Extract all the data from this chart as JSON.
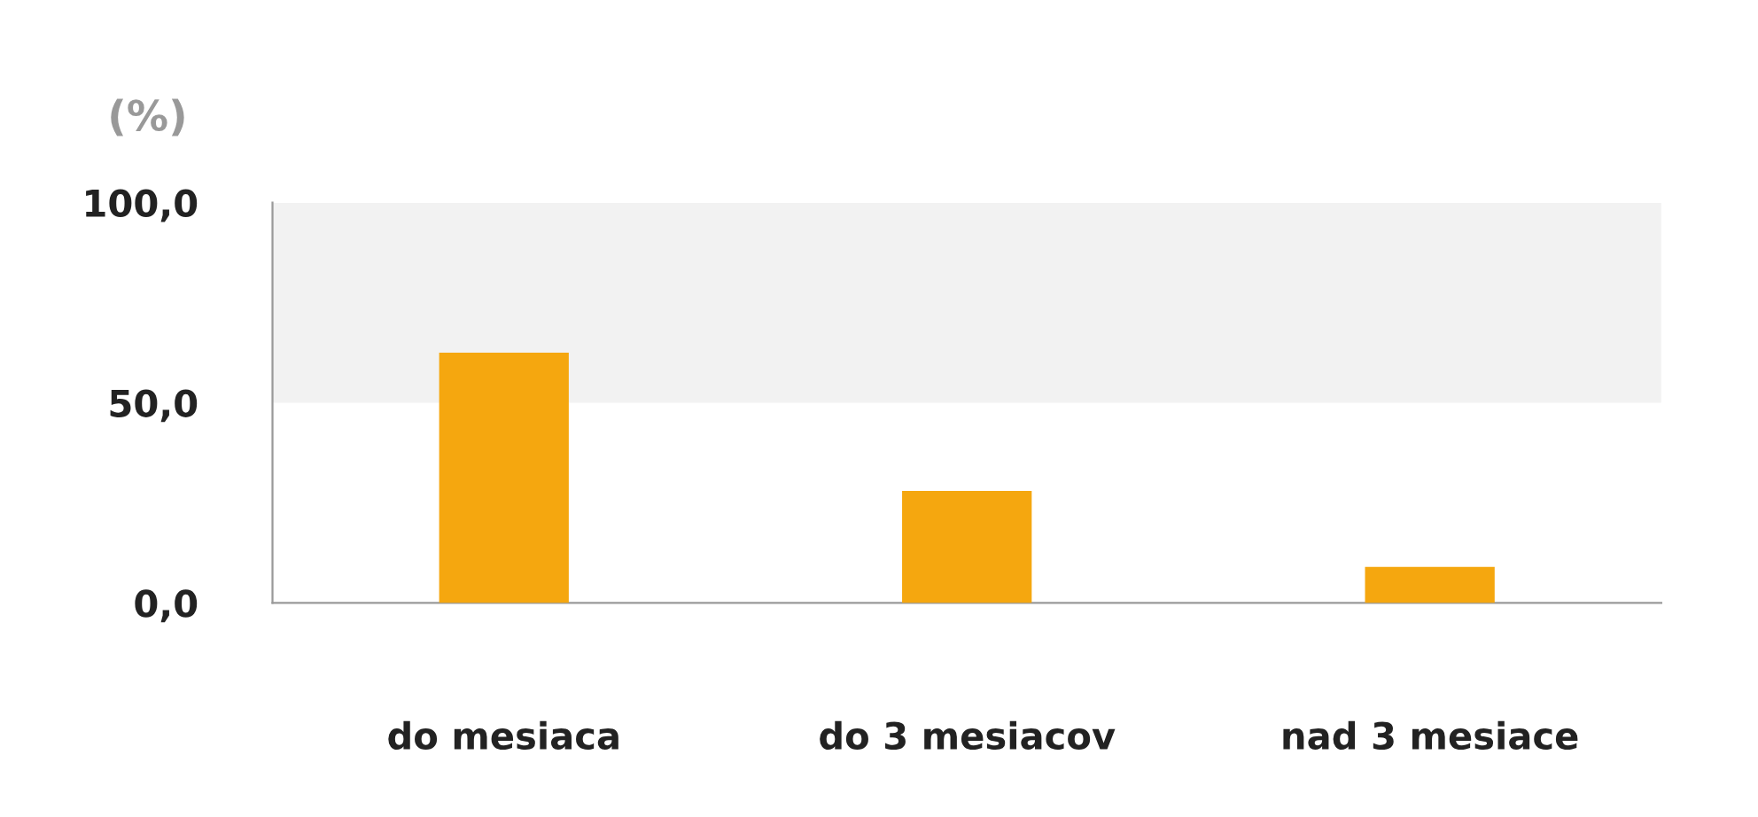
{
  "chart_data": {
    "type": "bar",
    "ylabel": "(%)",
    "categories": [
      "do mesiaca",
      "do 3 mesiacov",
      "nad 3 mesiace"
    ],
    "values": [
      62.5,
      28,
      9
    ],
    "color": "#f5a70f",
    "ylim": [
      0,
      100
    ],
    "yticks": [
      {
        "value": 0,
        "label": "0,0"
      },
      {
        "value": 50,
        "label": "50,0"
      },
      {
        "value": 100,
        "label": "100,0"
      }
    ],
    "bands": [
      {
        "axis": "y",
        "from": 50,
        "to": 100,
        "color": "#f2f2f2"
      }
    ],
    "grid": false,
    "legend": false
  }
}
